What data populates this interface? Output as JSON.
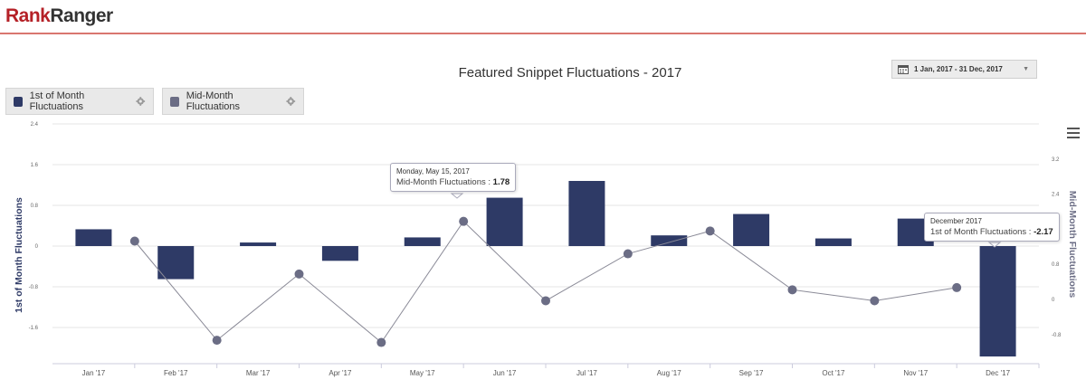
{
  "app": {
    "logo_part1": "Rank",
    "logo_part2": "Ranger"
  },
  "date_range": {
    "label": "1 Jan, 2017 - 31 Dec, 2017"
  },
  "legend": [
    {
      "label": "1st of Month Fluctuations",
      "color": "#2e3a66"
    },
    {
      "label": "Mid-Month Fluctuations",
      "color": "#6b6d85"
    }
  ],
  "tooltips": [
    {
      "date": "Monday, May 15, 2017",
      "series": "Mid-Month Fluctuations",
      "value": "1.78"
    },
    {
      "date": "December 2017",
      "series": "1st of Month Fluctuations",
      "value": "-2.17"
    }
  ],
  "chart_data": {
    "type": "bar",
    "title": "Featured Snippet Fluctuations - 2017",
    "categories": [
      "Jan '17",
      "Feb '17",
      "Mar '17",
      "Apr '17",
      "May '17",
      "Jun '17",
      "Jul '17",
      "Aug '17",
      "Sep '17",
      "Oct '17",
      "Nov '17",
      "Dec '17"
    ],
    "y_left": {
      "label": "1st of Month Fluctuations",
      "ticks": [
        "2.4",
        "1.6",
        "0.8",
        "0",
        "-0.8",
        "-1.6"
      ],
      "range": [
        -2.2,
        2.4
      ]
    },
    "y_right": {
      "label": "Mid-Month Fluctuations",
      "ticks": [
        "3.2",
        "2.4",
        "1.6",
        "0.8",
        "0",
        "-0.8"
      ],
      "range": [
        -1.0,
        3.2
      ]
    },
    "series": [
      {
        "name": "1st of Month Fluctuations",
        "type": "bar",
        "axis": "left",
        "color": "#2e3a66",
        "values": [
          0.33,
          -0.65,
          0.07,
          -0.29,
          0.17,
          0.95,
          1.28,
          0.21,
          0.63,
          0.15,
          0.54,
          -2.17
        ]
      },
      {
        "name": "Mid-Month Fluctuations",
        "type": "line",
        "axis": "right",
        "color": "#6b6d85",
        "values": [
          1.33,
          -0.93,
          0.58,
          -0.98,
          1.78,
          -0.03,
          1.04,
          1.56,
          0.22,
          -0.03,
          0.27,
          null
        ]
      }
    ],
    "grid": true,
    "legend_position": "top-left"
  }
}
